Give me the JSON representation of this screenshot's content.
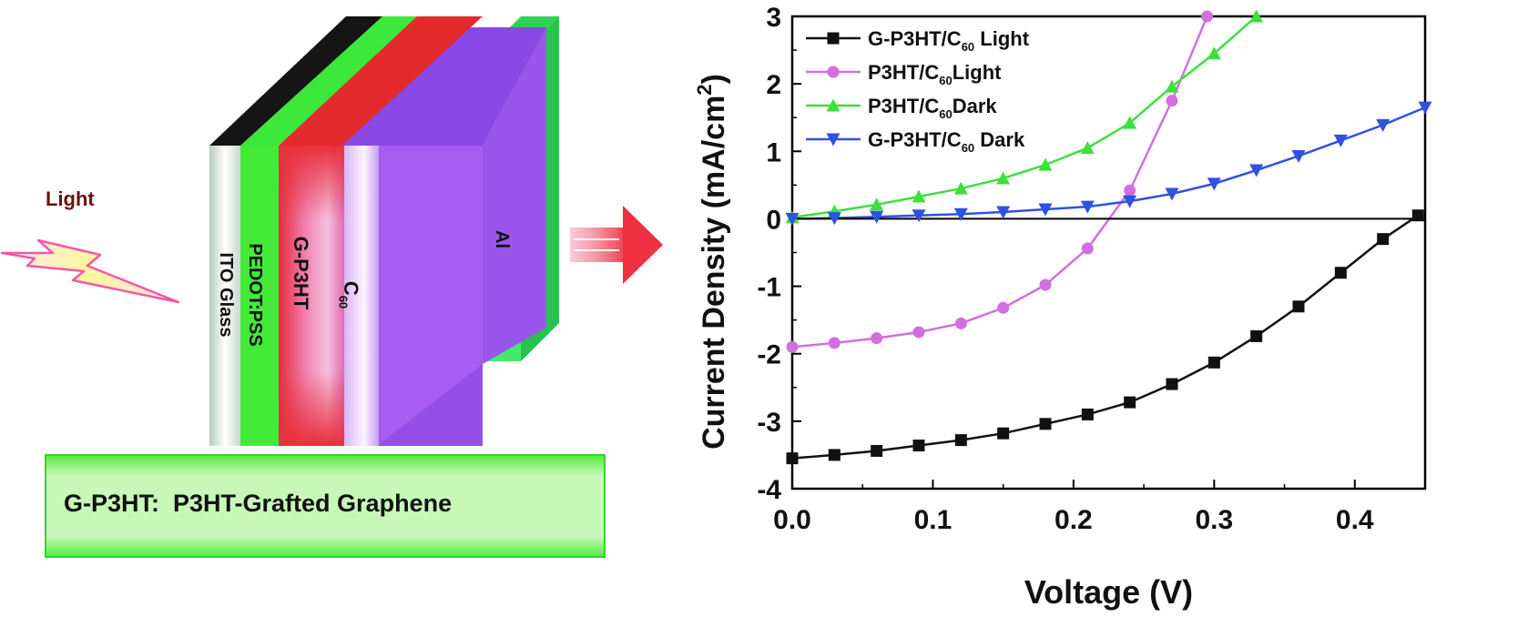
{
  "diagram": {
    "light_label": "Light",
    "layers": {
      "ito": "ITO Glass",
      "pedot": "PEDOT:PSS",
      "gp3ht": "G-P3HT",
      "c60_main": "C",
      "c60_sub": "60",
      "al": "Al"
    },
    "banner": "G-P3HT:  P3HT-Grafted Graphene",
    "colors": {
      "ito": "#e8f0ea",
      "pedot": "#44e83a",
      "gp3ht": "#e0304a",
      "c60": "#a75cf0",
      "al": "#3ee86a",
      "banner": "#52ea3c",
      "arrow": "#f0404a"
    }
  },
  "chart_data": {
    "type": "line",
    "xlabel": "Voltage (V)",
    "ylabel": "Current Density (mA/cm",
    "ylabel_sup": "2",
    "ylabel_end": ")",
    "xlim": [
      0,
      0.45
    ],
    "ylim": [
      -4,
      3
    ],
    "xticks": [
      "0.0",
      "0.1",
      "0.2",
      "0.3",
      "0.4"
    ],
    "xtick_values": [
      0,
      0.1,
      0.2,
      0.3,
      0.4
    ],
    "yticks": [
      "3",
      "2",
      "1",
      "0",
      "-1",
      "-2",
      "-3",
      "-4"
    ],
    "ytick_values": [
      3,
      2,
      1,
      0,
      -1,
      -2,
      -3,
      -4
    ],
    "series": [
      {
        "name": "G-P3HT/C60 Light",
        "legend_main": "G-P3HT/C",
        "legend_sub": "60",
        "legend_tail": " Light",
        "color": "#111111",
        "marker": "square",
        "x": [
          0,
          0.03,
          0.06,
          0.09,
          0.12,
          0.15,
          0.18,
          0.21,
          0.24,
          0.27,
          0.3,
          0.33,
          0.36,
          0.39,
          0.42,
          0.445
        ],
        "y": [
          -3.55,
          -3.5,
          -3.44,
          -3.36,
          -3.28,
          -3.18,
          -3.04,
          -2.9,
          -2.72,
          -2.45,
          -2.13,
          -1.74,
          -1.3,
          -0.8,
          -0.3,
          0.05
        ]
      },
      {
        "name": "P3HT/C60Light",
        "legend_main": "P3HT/C",
        "legend_sub": "60",
        "legend_tail": "Light",
        "color": "#d26ee0",
        "marker": "circle",
        "x": [
          0,
          0.03,
          0.06,
          0.09,
          0.12,
          0.15,
          0.18,
          0.21,
          0.24,
          0.27,
          0.295
        ],
        "y": [
          -1.9,
          -1.84,
          -1.77,
          -1.68,
          -1.55,
          -1.32,
          -0.98,
          -0.44,
          0.42,
          1.75,
          3.0
        ]
      },
      {
        "name": "P3HT/C60Dark",
        "legend_main": "P3HT/C",
        "legend_sub": "60",
        "legend_tail": "Dark",
        "color": "#3ee03c",
        "marker": "triangle-up",
        "x": [
          0,
          0.03,
          0.06,
          0.09,
          0.12,
          0.15,
          0.18,
          0.21,
          0.24,
          0.27,
          0.3,
          0.33
        ],
        "y": [
          0.02,
          0.11,
          0.21,
          0.33,
          0.45,
          0.6,
          0.8,
          1.05,
          1.42,
          1.96,
          2.45,
          3.0
        ]
      },
      {
        "name": "G-P3HT/C60 Dark",
        "legend_main": "G-P3HT/C",
        "legend_sub": "60",
        "legend_tail": " Dark",
        "color": "#2f52e0",
        "marker": "triangle-down",
        "x": [
          0,
          0.03,
          0.06,
          0.09,
          0.12,
          0.15,
          0.18,
          0.21,
          0.24,
          0.27,
          0.3,
          0.33,
          0.36,
          0.39,
          0.42,
          0.45
        ],
        "y": [
          0.0,
          0.01,
          0.03,
          0.05,
          0.07,
          0.1,
          0.14,
          0.18,
          0.26,
          0.37,
          0.52,
          0.72,
          0.93,
          1.16,
          1.39,
          1.65
        ]
      }
    ]
  }
}
